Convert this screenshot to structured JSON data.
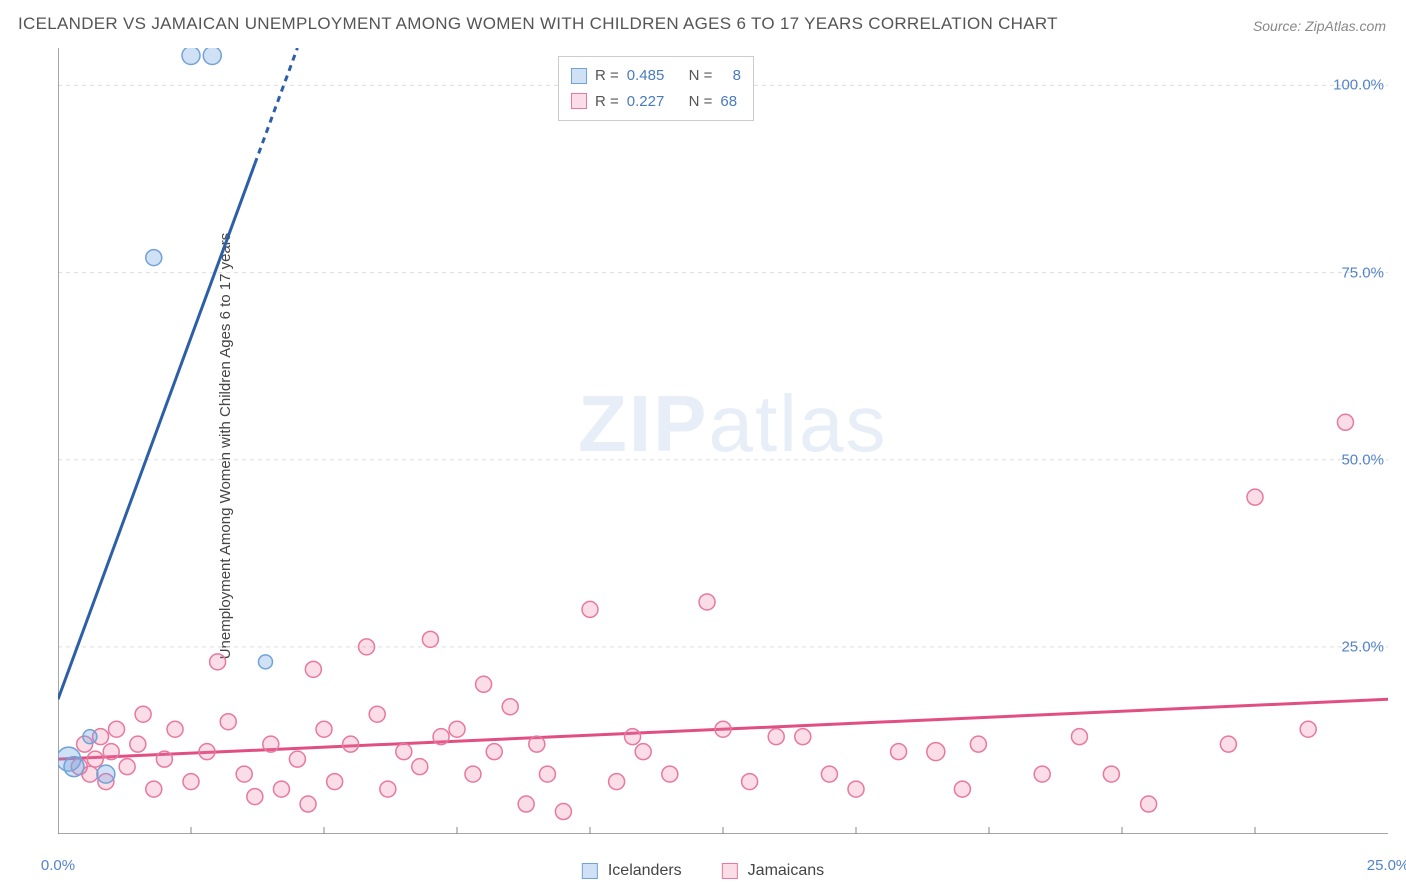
{
  "title": "ICELANDER VS JAMAICAN UNEMPLOYMENT AMONG WOMEN WITH CHILDREN AGES 6 TO 17 YEARS CORRELATION CHART",
  "source": "Source: ZipAtlas.com",
  "y_axis_label": "Unemployment Among Women with Children Ages 6 to 17 years",
  "watermark_zip": "ZIP",
  "watermark_atlas": "atlas",
  "chart": {
    "type": "scatter",
    "xlim": [
      0,
      25
    ],
    "ylim": [
      0,
      105
    ],
    "background_color": "#ffffff",
    "grid_color": "#dddddd",
    "axis_color": "#888888",
    "y_ticks": [
      25,
      50,
      75,
      100
    ],
    "y_tick_labels": [
      "25.0%",
      "50.0%",
      "75.0%",
      "100.0%"
    ],
    "x_ticks_minor": [
      2.5,
      5,
      7.5,
      10,
      12.5,
      15,
      17.5,
      20,
      22.5
    ],
    "x_ticks_labeled": [
      0,
      25
    ],
    "x_tick_labels": [
      "0.0%",
      "25.0%"
    ],
    "series": {
      "icelanders": {
        "label": "Icelanders",
        "color_fill": "rgba(120,170,225,0.35)",
        "color_stroke": "#6fa3d8",
        "marker_size": 8,
        "trend": {
          "x1": 0,
          "y1": 18,
          "x2": 4.5,
          "y2": 105,
          "color": "#2d5fa8",
          "width": 3,
          "dash_beyond_x": 3.7
        },
        "points": [
          {
            "x": 2.5,
            "y": 104,
            "r": 9
          },
          {
            "x": 2.9,
            "y": 104,
            "r": 9
          },
          {
            "x": 1.8,
            "y": 77,
            "r": 8
          },
          {
            "x": 3.9,
            "y": 23,
            "r": 7
          },
          {
            "x": 0.6,
            "y": 13,
            "r": 7
          },
          {
            "x": 0.9,
            "y": 8,
            "r": 9
          },
          {
            "x": 0.2,
            "y": 10,
            "r": 12
          },
          {
            "x": 0.3,
            "y": 9,
            "r": 10
          }
        ],
        "R": "0.485",
        "N": "8"
      },
      "jamaicans": {
        "label": "Jamaicans",
        "color_fill": "rgba(235,120,160,0.25)",
        "color_stroke": "#e8789f",
        "marker_size": 8,
        "trend": {
          "x1": 0,
          "y1": 10,
          "x2": 25,
          "y2": 18,
          "color": "#e14f82",
          "width": 3
        },
        "points": [
          {
            "x": 24.2,
            "y": 55,
            "r": 8
          },
          {
            "x": 22.5,
            "y": 45,
            "r": 8
          },
          {
            "x": 12.2,
            "y": 31,
            "r": 8
          },
          {
            "x": 10.0,
            "y": 30,
            "r": 8
          },
          {
            "x": 7.0,
            "y": 26,
            "r": 8
          },
          {
            "x": 5.8,
            "y": 25,
            "r": 8
          },
          {
            "x": 3.0,
            "y": 23,
            "r": 8
          },
          {
            "x": 4.8,
            "y": 22,
            "r": 8
          },
          {
            "x": 8.0,
            "y": 20,
            "r": 8
          },
          {
            "x": 8.5,
            "y": 17,
            "r": 8
          },
          {
            "x": 6.0,
            "y": 16,
            "r": 8
          },
          {
            "x": 7.5,
            "y": 14,
            "r": 8
          },
          {
            "x": 23.5,
            "y": 14,
            "r": 8
          },
          {
            "x": 22.0,
            "y": 12,
            "r": 8
          },
          {
            "x": 19.2,
            "y": 13,
            "r": 8
          },
          {
            "x": 18.5,
            "y": 8,
            "r": 8
          },
          {
            "x": 17.3,
            "y": 12,
            "r": 8
          },
          {
            "x": 16.5,
            "y": 11,
            "r": 9
          },
          {
            "x": 15.0,
            "y": 6,
            "r": 8
          },
          {
            "x": 14.0,
            "y": 13,
            "r": 8
          },
          {
            "x": 13.0,
            "y": 7,
            "r": 8
          },
          {
            "x": 12.5,
            "y": 14,
            "r": 8
          },
          {
            "x": 11.0,
            "y": 11,
            "r": 8
          },
          {
            "x": 10.5,
            "y": 7,
            "r": 8
          },
          {
            "x": 9.5,
            "y": 3,
            "r": 8
          },
          {
            "x": 9.0,
            "y": 12,
            "r": 8
          },
          {
            "x": 8.8,
            "y": 4,
            "r": 8
          },
          {
            "x": 8.2,
            "y": 11,
            "r": 8
          },
          {
            "x": 7.8,
            "y": 8,
            "r": 8
          },
          {
            "x": 7.2,
            "y": 13,
            "r": 8
          },
          {
            "x": 6.5,
            "y": 11,
            "r": 8
          },
          {
            "x": 6.2,
            "y": 6,
            "r": 8
          },
          {
            "x": 5.5,
            "y": 12,
            "r": 8
          },
          {
            "x": 5.2,
            "y": 7,
            "r": 8
          },
          {
            "x": 5.0,
            "y": 14,
            "r": 8
          },
          {
            "x": 4.5,
            "y": 10,
            "r": 8
          },
          {
            "x": 4.2,
            "y": 6,
            "r": 8
          },
          {
            "x": 4.0,
            "y": 12,
            "r": 8
          },
          {
            "x": 3.5,
            "y": 8,
            "r": 8
          },
          {
            "x": 3.2,
            "y": 15,
            "r": 8
          },
          {
            "x": 2.8,
            "y": 11,
            "r": 8
          },
          {
            "x": 2.5,
            "y": 7,
            "r": 8
          },
          {
            "x": 2.2,
            "y": 14,
            "r": 8
          },
          {
            "x": 2.0,
            "y": 10,
            "r": 8
          },
          {
            "x": 1.8,
            "y": 6,
            "r": 8
          },
          {
            "x": 1.5,
            "y": 12,
            "r": 8
          },
          {
            "x": 1.3,
            "y": 9,
            "r": 8
          },
          {
            "x": 1.1,
            "y": 14,
            "r": 8
          },
          {
            "x": 1.0,
            "y": 11,
            "r": 8
          },
          {
            "x": 0.9,
            "y": 7,
            "r": 8
          },
          {
            "x": 0.8,
            "y": 13,
            "r": 8
          },
          {
            "x": 0.7,
            "y": 10,
            "r": 8
          },
          {
            "x": 0.6,
            "y": 8,
            "r": 8
          },
          {
            "x": 0.5,
            "y": 12,
            "r": 8
          },
          {
            "x": 0.4,
            "y": 9,
            "r": 8
          },
          {
            "x": 20.5,
            "y": 4,
            "r": 8
          },
          {
            "x": 19.8,
            "y": 8,
            "r": 8
          },
          {
            "x": 17.0,
            "y": 6,
            "r": 8
          },
          {
            "x": 15.8,
            "y": 11,
            "r": 8
          },
          {
            "x": 14.5,
            "y": 8,
            "r": 8
          },
          {
            "x": 13.5,
            "y": 13,
            "r": 8
          },
          {
            "x": 11.5,
            "y": 8,
            "r": 8
          },
          {
            "x": 10.8,
            "y": 13,
            "r": 8
          },
          {
            "x": 9.2,
            "y": 8,
            "r": 8
          },
          {
            "x": 6.8,
            "y": 9,
            "r": 8
          },
          {
            "x": 4.7,
            "y": 4,
            "r": 8
          },
          {
            "x": 3.7,
            "y": 5,
            "r": 8
          },
          {
            "x": 1.6,
            "y": 16,
            "r": 8
          }
        ],
        "R": "0.227",
        "N": "68"
      }
    }
  },
  "legend_top": {
    "r_label": "R =",
    "n_label": "N ="
  },
  "legend_bottom": {
    "items": [
      "Icelanders",
      "Jamaicans"
    ]
  }
}
